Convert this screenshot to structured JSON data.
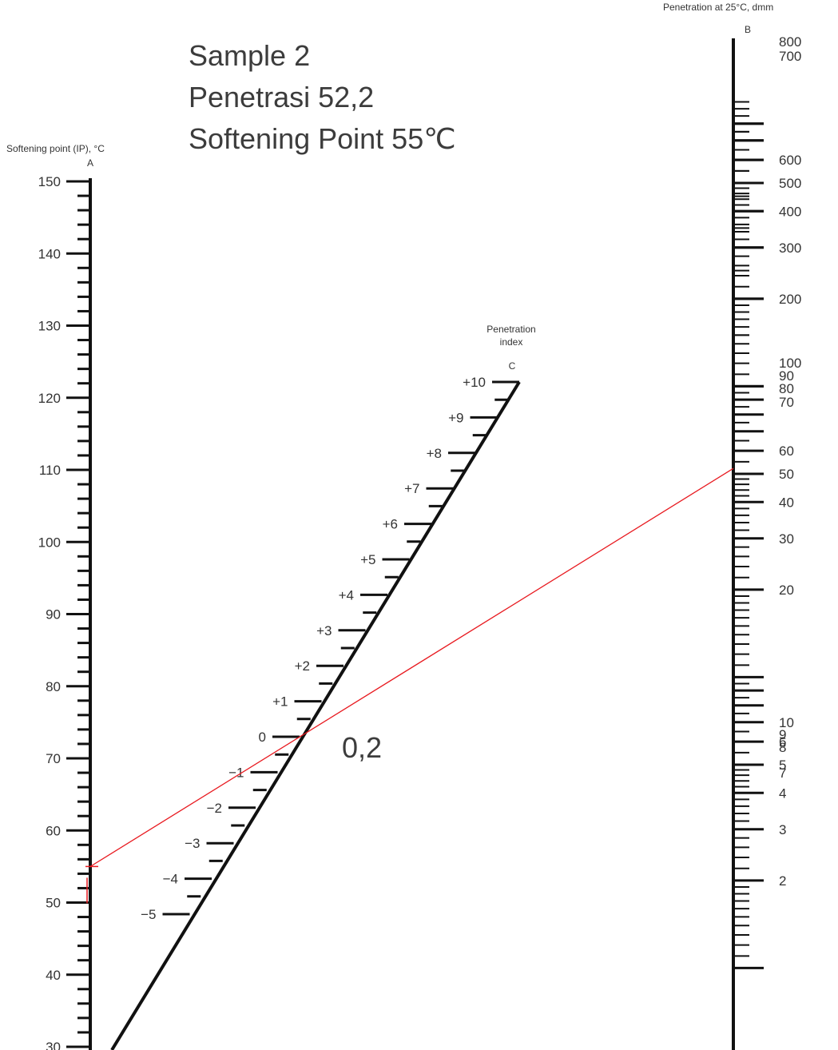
{
  "annotations": {
    "line1": "Sample 2",
    "line2": "Penetrasi 52,2",
    "line3": "Softening Point 55℃"
  },
  "result_label": "0,2",
  "chart_data": {
    "type": "nomogram",
    "scales": [
      {
        "id": "A",
        "letter": "A",
        "title": "Softening point (IP), °C",
        "range": [
          30,
          150
        ],
        "major_labels": [
          "150",
          "140",
          "130",
          "120",
          "110",
          "100",
          "90",
          "80",
          "70",
          "60",
          "50",
          "40",
          "30"
        ],
        "major_values": [
          150,
          140,
          130,
          120,
          110,
          100,
          90,
          80,
          70,
          60,
          50,
          40,
          30
        ],
        "minor_step": 2
      },
      {
        "id": "B",
        "letter": "B",
        "title": "Penetration at 25°C, dmm",
        "scale": "log",
        "range": [
          1,
          800
        ],
        "major_labels": [
          "800",
          "700",
          "600",
          "500",
          "400",
          "300",
          "200",
          "100",
          "90",
          "80",
          "70",
          "60",
          "50",
          "40",
          "30",
          "20",
          "10",
          "9",
          "8",
          "7",
          "6",
          "5",
          "4",
          "3",
          "2"
        ],
        "major_values": [
          800,
          700,
          600,
          500,
          400,
          300,
          200,
          100,
          90,
          80,
          70,
          60,
          50,
          40,
          30,
          20,
          10,
          9,
          8,
          7,
          6,
          5,
          4,
          3,
          2
        ]
      },
      {
        "id": "C",
        "letter": "C",
        "title": "Penetration index",
        "range": [
          -5,
          10
        ],
        "major_labels": [
          "+10",
          "+9",
          "+8",
          "+7",
          "+6",
          "+5",
          "+4",
          "+3",
          "+2",
          "+1",
          "0",
          "−1",
          "−2",
          "−3",
          "−4",
          "−5"
        ],
        "major_values": [
          10,
          9,
          8,
          7,
          6,
          5,
          4,
          3,
          2,
          1,
          0,
          -1,
          -2,
          -3,
          -4,
          -5
        ],
        "minor_step": 0.5
      }
    ],
    "reading": {
      "softening_point_c": 55,
      "penetration_dmm": 52.2,
      "penetration_index": 0.2,
      "line_color": "#e8191f"
    }
  }
}
